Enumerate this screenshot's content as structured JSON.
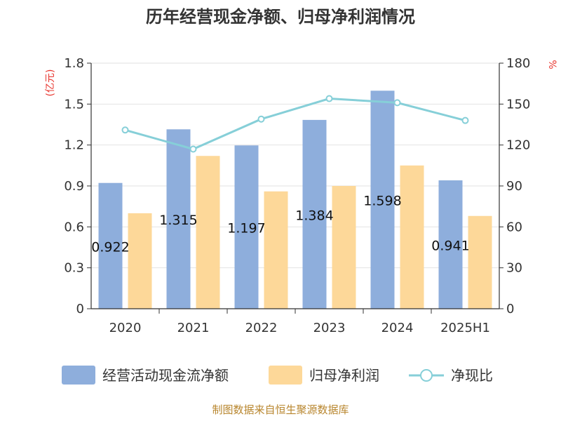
{
  "chart_data": {
    "type": "bar",
    "title": "历年经营现金净额、归母净利润情况",
    "categories": [
      "2020",
      "2021",
      "2022",
      "2023",
      "2024",
      "2025H1"
    ],
    "series": [
      {
        "name": "经营活动现金流净额",
        "type": "bar",
        "axis": "left",
        "values": [
          0.922,
          1.315,
          1.197,
          1.384,
          1.598,
          0.941
        ]
      },
      {
        "name": "归母净利润",
        "type": "bar",
        "axis": "left",
        "values": [
          0.7,
          1.12,
          0.86,
          0.9,
          1.05,
          0.68
        ]
      },
      {
        "name": "净现比",
        "type": "line",
        "axis": "right",
        "values": [
          131,
          117,
          139,
          154,
          151,
          138
        ]
      }
    ],
    "bar_labels": [
      "0.922",
      "1.315",
      "1.197",
      "1.384",
      "1.598",
      "0.941"
    ],
    "y_left": {
      "unit": "(亿元)",
      "min": 0,
      "max": 1.8,
      "ticks": [
        "0",
        "0.3",
        "0.6",
        "0.9",
        "1.2",
        "1.5",
        "1.8"
      ]
    },
    "y_right": {
      "unit": "%",
      "min": 0,
      "max": 180,
      "ticks": [
        "0",
        "30",
        "60",
        "90",
        "120",
        "150",
        "180"
      ]
    },
    "grid": true,
    "legend_position": "bottom",
    "colors": {
      "cash": "#8eaedc",
      "profit": "#fdd899",
      "ratio": "#86cfd8"
    },
    "source": "制图数据来自恒生聚源数据库"
  }
}
